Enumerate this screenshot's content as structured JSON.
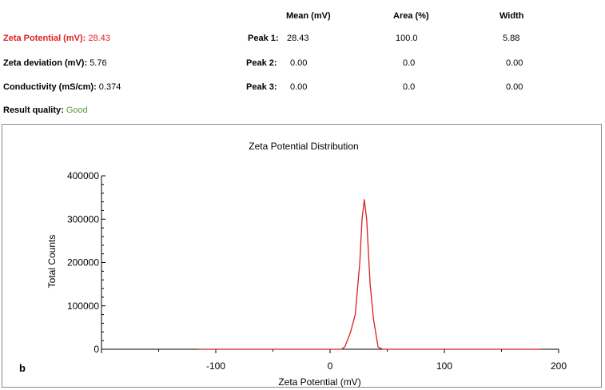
{
  "summary": {
    "zeta_potential": {
      "label": "Zeta Potential (mV):",
      "value": "28.43",
      "color": "#e02020"
    },
    "zeta_deviation": {
      "label": "Zeta deviation (mV):",
      "value": "5.76"
    },
    "conductivity": {
      "label": "Conductivity (mS/cm):",
      "value": "0.374"
    },
    "result_quality": {
      "label": "Result quality:",
      "value": "Good",
      "color": "#5a9a3a"
    }
  },
  "peaks_table": {
    "headers": [
      "Mean (mV)",
      "Area (%)",
      "Width"
    ],
    "rows": [
      {
        "label": "Peak 1:",
        "mean": "28.43",
        "area": "100.0",
        "width": "5.88"
      },
      {
        "label": "Peak 2:",
        "mean": "0.00",
        "area": "0.0",
        "width": "0.00"
      },
      {
        "label": "Peak 3:",
        "mean": "0.00",
        "area": "0.0",
        "width": "0.00"
      }
    ]
  },
  "panel_letter": "b",
  "chart_data": {
    "type": "line",
    "title": "Zeta Potential Distribution",
    "xlabel": "Zeta Potential (mV)",
    "ylabel": "Total Counts",
    "xlim": [
      -200,
      200
    ],
    "ylim": [
      0,
      400000
    ],
    "xticks": [
      -100,
      0,
      100,
      200
    ],
    "yticks": [
      0,
      100000,
      200000,
      300000,
      400000
    ],
    "grid": false,
    "series": [
      {
        "color": "#d62020",
        "x": [
          -115,
          0,
          10,
          13,
          18,
          22,
          26,
          28,
          30,
          32,
          35,
          38,
          42,
          46,
          50,
          60,
          184
        ],
        "y": [
          0,
          0,
          0,
          6000,
          40000,
          80000,
          200000,
          300000,
          345000,
          300000,
          150000,
          70000,
          5000,
          0,
          0,
          0,
          0
        ]
      }
    ]
  }
}
